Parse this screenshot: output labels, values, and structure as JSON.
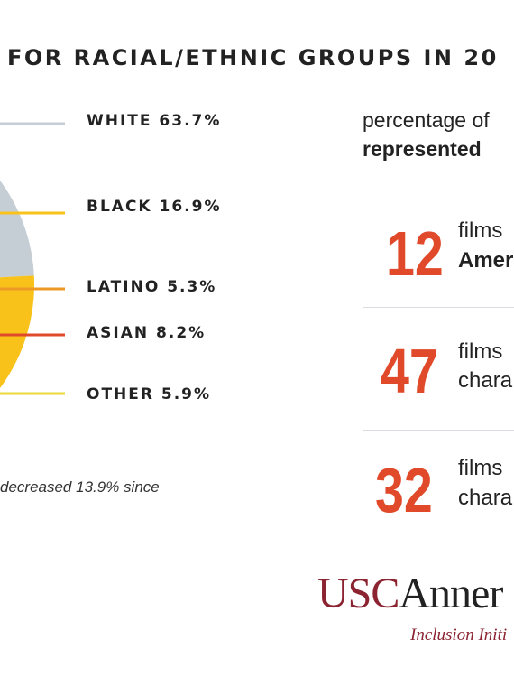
{
  "header": {
    "title": "FOR RACIAL/ETHNIC GROUPS IN 20"
  },
  "chart_data": {
    "type": "pie",
    "title": "FOR RACIAL/ETHNIC GROUPS IN 20",
    "categories": [
      "WHITE",
      "BLACK",
      "LATINO",
      "ASIAN",
      "OTHER"
    ],
    "values": [
      63.7,
      16.9,
      5.3,
      8.2,
      5.9
    ],
    "labels": [
      "WHITE 63.7%",
      "BLACK 16.9%",
      "LATINO 5.3%",
      "ASIAN 8.2%",
      "OTHER 5.9%"
    ],
    "colors": [
      "#c5ced4",
      "#f8c21a",
      "#ec9a25",
      "#e04a2a",
      "#e9d93a"
    ]
  },
  "note": {
    "text": "decreased 13.9% since"
  },
  "stats": {
    "subtitle_line1": "percentage of",
    "subtitle_line2": "represented",
    "items": [
      {
        "number": "12",
        "line1": "films",
        "line2": "Amer",
        "line2_bold": true
      },
      {
        "number": "47",
        "line1": "films",
        "line2": "chara",
        "line2_bold": false
      },
      {
        "number": "32",
        "line1": "films",
        "line2": "chara",
        "line2_bold": false
      }
    ]
  },
  "logo": {
    "usc": "USC",
    "rest": "Anner",
    "sub": "Inclusion Initi"
  }
}
